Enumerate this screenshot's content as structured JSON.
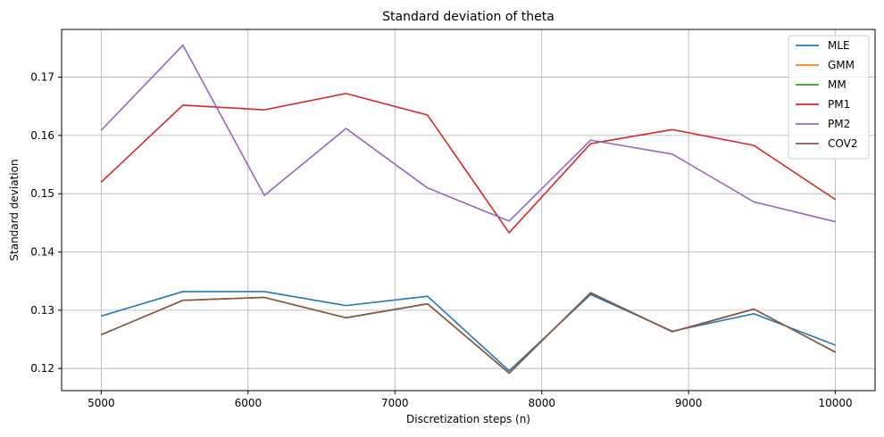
{
  "chart_data": {
    "type": "line",
    "title": "Standard deviation of theta",
    "xlabel": "Discretization steps (n)",
    "ylabel": "Standard deviation",
    "xlim": [
      4730,
      10270
    ],
    "ylim": [
      0.1162,
      0.1782
    ],
    "xticks": [
      5000,
      6000,
      7000,
      8000,
      9000,
      10000
    ],
    "xtick_labels": [
      "5000",
      "6000",
      "7000",
      "8000",
      "9000",
      "10000"
    ],
    "yticks": [
      0.12,
      0.13,
      0.14,
      0.15,
      0.16,
      0.17
    ],
    "ytick_labels": [
      "0.12",
      "0.13",
      "0.14",
      "0.15",
      "0.16",
      "0.17"
    ],
    "grid": true,
    "legend_position": "top-right",
    "x": [
      5000,
      5556,
      6111,
      6667,
      7222,
      7778,
      8333,
      8889,
      9444,
      10000
    ],
    "series": [
      {
        "name": "MLE",
        "color": "#1f77b4",
        "values": [
          0.129,
          0.1332,
          0.1332,
          0.1308,
          0.1324,
          0.1196,
          0.1327,
          0.1264,
          0.1294,
          0.124
        ]
      },
      {
        "name": "GMM",
        "color": "#ff7f0e",
        "values": [
          0.1258,
          0.1317,
          0.1322,
          0.1287,
          0.1311,
          0.1192,
          0.133,
          0.1263,
          0.1302,
          0.1228
        ]
      },
      {
        "name": "MM",
        "color": "#2ca02c",
        "values": [
          0.1258,
          0.1317,
          0.1322,
          0.1287,
          0.1311,
          0.1192,
          0.133,
          0.1263,
          0.1302,
          0.1228
        ]
      },
      {
        "name": "PM1",
        "color": "#d62728",
        "values": [
          0.152,
          0.1652,
          0.1644,
          0.1672,
          0.1635,
          0.1433,
          0.1586,
          0.161,
          0.1583,
          0.149
        ]
      },
      {
        "name": "PM2",
        "color": "#9467bd",
        "values": [
          0.1609,
          0.1755,
          0.1497,
          0.1612,
          0.151,
          0.1453,
          0.1592,
          0.1568,
          0.1486,
          0.1452
        ]
      },
      {
        "name": "COV2",
        "color": "#8c564b",
        "values": [
          0.1258,
          0.1317,
          0.1322,
          0.1287,
          0.1311,
          0.1192,
          0.133,
          0.1263,
          0.1302,
          0.1228
        ]
      }
    ]
  }
}
